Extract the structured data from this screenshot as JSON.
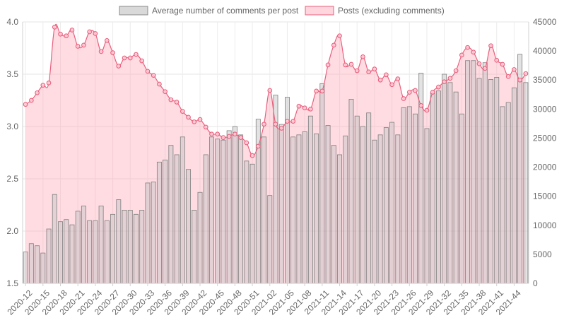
{
  "chart_data": {
    "type": "bar+area",
    "legend": {
      "position": "top",
      "items": [
        {
          "label": "Average number of comments per post",
          "fill": "#d9d9d9",
          "stroke": "#8c8c8c"
        },
        {
          "label": "Posts (excluding comments)",
          "fill": "#ffd6dd",
          "stroke": "#e8607d"
        }
      ]
    },
    "left_axis": {
      "min": 1.5,
      "max": 4.0,
      "ticks": [
        "4.0",
        "3.5",
        "3.0",
        "2.5",
        "2.0",
        "1.5"
      ]
    },
    "right_axis": {
      "min": 0,
      "max": 45000,
      "ticks": [
        "45000",
        "40000",
        "35000",
        "30000",
        "25000",
        "20000",
        "15000",
        "10000",
        "5000",
        "0"
      ]
    },
    "grid": true,
    "x_tick_labels": [
      "2020-12",
      "2020-15",
      "2020-18",
      "2020-21",
      "2020-24",
      "2020-27",
      "2020-30",
      "2020-33",
      "2020-36",
      "2020-39",
      "2020-42",
      "2020-45",
      "2020-48",
      "2020-51",
      "2021-02",
      "2021-05",
      "2021-08",
      "2021-11",
      "2021-14",
      "2021-17",
      "2021-20",
      "2021-23",
      "2021-26",
      "2021-29",
      "2021-32",
      "2021-35",
      "2021-38",
      "2021-41",
      "2021-44"
    ],
    "series": [
      {
        "name": "Average number of comments per post",
        "type": "bar",
        "axis": "left",
        "values": [
          1.8,
          1.88,
          1.86,
          1.79,
          2.02,
          2.35,
          2.09,
          2.11,
          2.06,
          2.19,
          2.24,
          2.1,
          2.1,
          2.24,
          2.1,
          2.16,
          2.3,
          2.2,
          2.2,
          2.16,
          2.2,
          2.46,
          2.47,
          2.66,
          2.68,
          2.82,
          2.73,
          2.9,
          2.59,
          2.2,
          2.37,
          2.73,
          2.9,
          2.88,
          2.87,
          2.96,
          3.0,
          2.92,
          2.67,
          2.64,
          3.07,
          2.9,
          2.34,
          3.3,
          3.02,
          3.28,
          2.9,
          2.92,
          2.95,
          3.1,
          2.93,
          3.41,
          3.01,
          2.82,
          2.73,
          2.91,
          3.26,
          3.1,
          3.0,
          3.13,
          2.87,
          2.92,
          2.99,
          3.04,
          2.92,
          3.18,
          3.19,
          3.12,
          3.51,
          2.98,
          3.32,
          3.34,
          3.5,
          3.42,
          3.33,
          3.12,
          3.63,
          3.63,
          3.46,
          3.61,
          3.45,
          3.47,
          3.19,
          3.23,
          3.37,
          3.69,
          3.42
        ]
      },
      {
        "name": "Posts (excluding comments)",
        "type": "area",
        "axis": "right",
        "values": [
          30800,
          31500,
          32800,
          34100,
          34500,
          44100,
          42900,
          42600,
          43600,
          40800,
          41000,
          43300,
          43000,
          39900,
          41800,
          39700,
          37400,
          38800,
          38800,
          39400,
          38300,
          36500,
          35800,
          34300,
          33000,
          31600,
          31200,
          29600,
          28600,
          27800,
          28200,
          26900,
          25700,
          25700,
          25100,
          25300,
          25700,
          25100,
          24200,
          22000,
          23600,
          27400,
          33200,
          27400,
          26700,
          27900,
          27900,
          30500,
          30200,
          30000,
          33100,
          33100,
          37600,
          41000,
          42600,
          37600,
          37700,
          36600,
          39000,
          36400,
          36900,
          35000,
          35900,
          34200,
          35200,
          31800,
          32900,
          33200,
          30600,
          29800,
          32900,
          33800,
          34700,
          35300,
          36600,
          39300,
          40600,
          39800,
          37800,
          37000,
          40900,
          38400,
          37700,
          35600,
          36800,
          35000,
          36100
        ]
      }
    ]
  }
}
